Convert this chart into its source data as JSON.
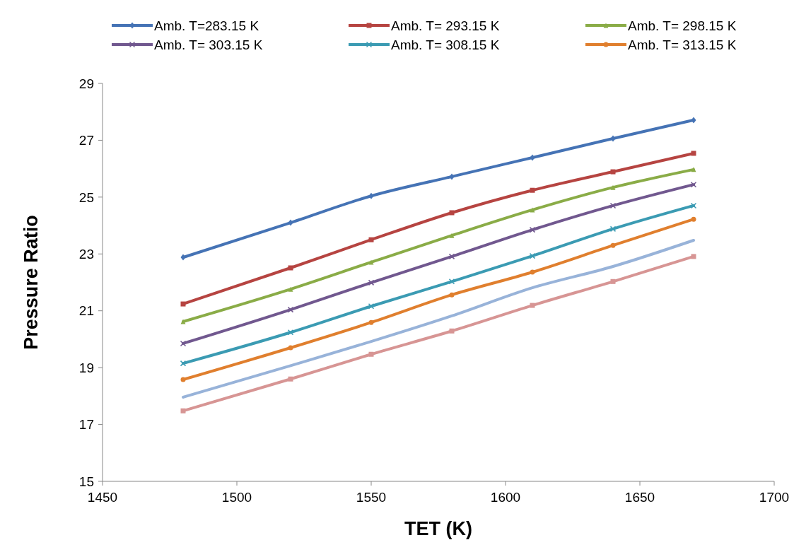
{
  "chart_data": {
    "type": "line",
    "xlabel": "TET (K)",
    "ylabel": "Pressure Ratio",
    "x": [
      1480,
      1520,
      1550,
      1580,
      1610,
      1640,
      1670
    ],
    "xlim": [
      1450,
      1700
    ],
    "xticks": [
      1450,
      1500,
      1550,
      1600,
      1650,
      1700
    ],
    "ylim": [
      15,
      29
    ],
    "yticks": [
      15,
      17,
      19,
      21,
      23,
      25,
      27,
      29
    ],
    "grid": false,
    "legend": "top",
    "line_style": "solid",
    "series": [
      {
        "name": "Amb. T=283.15 K",
        "color": "#4573b5",
        "marker": "diamond",
        "values": [
          22.88,
          24.1,
          25.04,
          25.72,
          26.39,
          27.06,
          27.71
        ]
      },
      {
        "name": "Amb. T= 293.15 K",
        "color": "#b64441",
        "marker": "square",
        "values": [
          21.24,
          22.51,
          23.5,
          24.45,
          25.24,
          25.89,
          26.54
        ]
      },
      {
        "name": "Amb. T= 298.15 K",
        "color": "#8aac47",
        "marker": "triangle",
        "values": [
          20.62,
          21.76,
          22.71,
          23.65,
          24.55,
          25.34,
          25.97
        ]
      },
      {
        "name": "Amb. T= 303.15 K",
        "color": "#71588f",
        "marker": "cross",
        "values": [
          19.85,
          21.04,
          21.99,
          22.91,
          23.85,
          24.7,
          25.44
        ]
      },
      {
        "name": "Amb. T= 308.15 K",
        "color": "#3b9bb3",
        "marker": "cross",
        "values": [
          19.15,
          20.24,
          21.16,
          22.03,
          22.93,
          23.88,
          24.7
        ]
      },
      {
        "name": "Amb. T= 313.15 K",
        "color": "#e07f2e",
        "marker": "circle",
        "values": [
          18.58,
          19.7,
          20.59,
          21.56,
          22.36,
          23.3,
          24.22
        ]
      },
      {
        "color": "#98b3d9",
        "marker": "none",
        "values": [
          17.96,
          19.07,
          19.92,
          20.82,
          21.81,
          22.56,
          23.48
        ]
      },
      {
        "color": "#d79594",
        "marker": "square",
        "values": [
          17.48,
          18.6,
          19.47,
          20.29,
          21.19,
          22.03,
          22.91
        ]
      }
    ]
  }
}
